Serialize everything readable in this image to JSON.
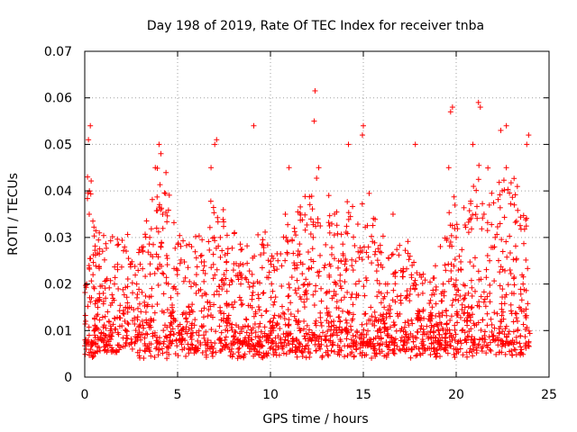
{
  "chart_data": {
    "type": "scatter",
    "title": "Day 198 of 2019, Rate Of TEC Index for receiver tnba",
    "xlabel": "GPS time / hours",
    "ylabel": "ROTI / TECUs",
    "xlim": [
      0,
      25
    ],
    "ylim": [
      0,
      0.07
    ],
    "grid": true,
    "marker": "plus",
    "color": "#ff0000",
    "x_ticks": [
      {
        "value": 0,
        "label": "0"
      },
      {
        "value": 5,
        "label": "5"
      },
      {
        "value": 10,
        "label": "10"
      },
      {
        "value": 15,
        "label": "15"
      },
      {
        "value": 20,
        "label": "20"
      },
      {
        "value": 25,
        "label": "25"
      }
    ],
    "y_ticks": [
      {
        "value": 0,
        "label": "0"
      },
      {
        "value": 0.01,
        "label": "0.01"
      },
      {
        "value": 0.02,
        "label": "0.02"
      },
      {
        "value": 0.03,
        "label": "0.03"
      },
      {
        "value": 0.04,
        "label": "0.04"
      },
      {
        "value": 0.05,
        "label": "0.05"
      },
      {
        "value": 0.06,
        "label": "0.06"
      },
      {
        "value": 0.07,
        "label": "0.07"
      }
    ],
    "series": [
      {
        "name": "ROTI",
        "description": "Dense cloud of red plus markers from 0 to 24 h; most values 0.005-0.02 TECU with spikes up to ~0.06",
        "x": [
          0.05,
          0.1,
          0.2,
          0.3,
          0.5,
          0.7,
          1.0,
          1.3,
          1.6,
          2.0,
          2.4,
          2.8,
          3.1,
          3.5,
          3.8,
          4.0,
          4.2,
          4.5,
          4.8,
          5.2,
          5.6,
          6.0,
          6.4,
          6.8,
          7.0,
          7.3,
          7.6,
          8.0,
          8.4,
          8.8,
          9.2,
          9.6,
          10.0,
          10.4,
          10.8,
          11.0,
          11.4,
          11.8,
          12.1,
          12.3,
          12.6,
          13.0,
          13.4,
          13.8,
          14.2,
          14.6,
          15.0,
          15.4,
          15.8,
          16.2,
          16.6,
          17.0,
          17.4,
          17.8,
          18.2,
          18.6,
          19.0,
          19.3,
          19.6,
          19.8,
          20.0,
          20.3,
          20.6,
          20.9,
          21.2,
          21.5,
          21.8,
          22.1,
          22.4,
          22.7,
          23.0,
          23.3,
          23.6,
          23.9,
          0.15,
          0.25,
          4.1,
          7.1,
          9.1,
          12.35,
          12.4,
          14.95,
          19.7,
          21.3,
          22.7,
          23.8
        ],
        "y": [
          0.012,
          0.02,
          0.051,
          0.054,
          0.01,
          0.015,
          0.018,
          0.012,
          0.02,
          0.011,
          0.015,
          0.02,
          0.012,
          0.03,
          0.045,
          0.05,
          0.035,
          0.02,
          0.012,
          0.01,
          0.015,
          0.018,
          0.011,
          0.045,
          0.05,
          0.03,
          0.012,
          0.015,
          0.02,
          0.011,
          0.014,
          0.018,
          0.012,
          0.025,
          0.035,
          0.045,
          0.018,
          0.012,
          0.02,
          0.03,
          0.045,
          0.018,
          0.012,
          0.025,
          0.05,
          0.02,
          0.054,
          0.015,
          0.012,
          0.02,
          0.035,
          0.01,
          0.012,
          0.05,
          0.018,
          0.012,
          0.011,
          0.02,
          0.045,
          0.058,
          0.03,
          0.01,
          0.012,
          0.05,
          0.059,
          0.035,
          0.025,
          0.03,
          0.053,
          0.045,
          0.018,
          0.012,
          0.02,
          0.052,
          0.043,
          0.04,
          0.048,
          0.051,
          0.054,
          0.055,
          0.0615,
          0.052,
          0.057,
          0.058,
          0.054,
          0.05
        ]
      }
    ]
  }
}
